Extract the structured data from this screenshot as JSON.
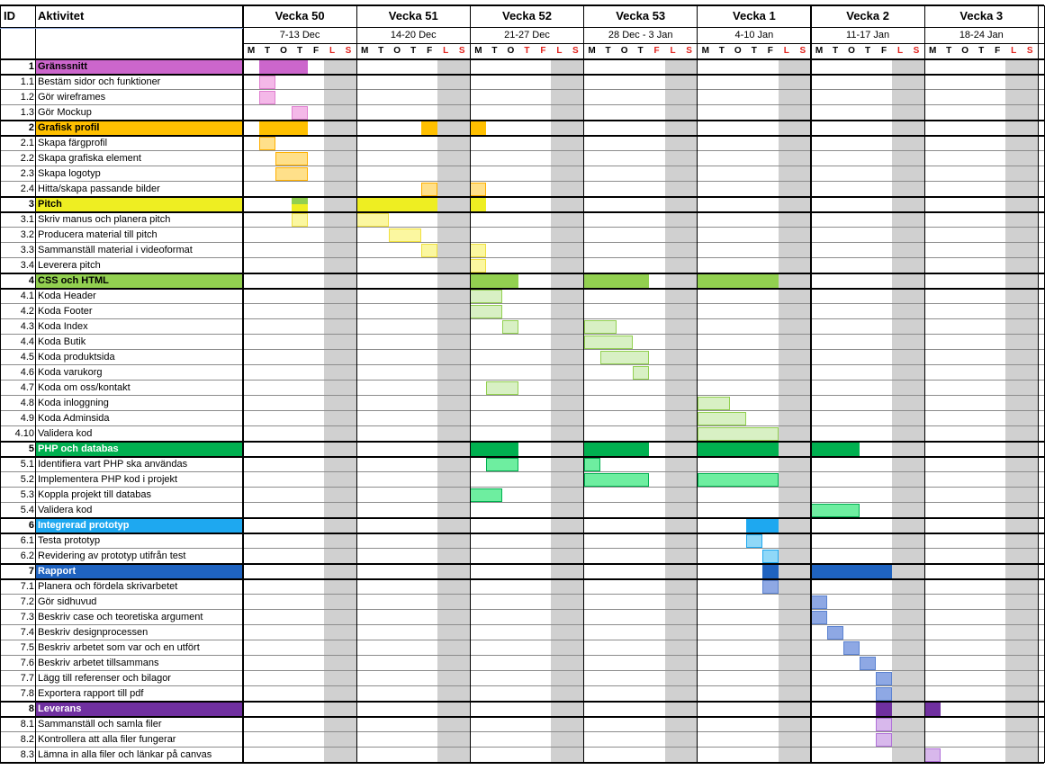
{
  "header": {
    "id_label": "ID",
    "activity_label": "Aktivitet"
  },
  "weeks": [
    {
      "name": "Vecka 50",
      "range": "7-13 Dec",
      "days": [
        "M",
        "T",
        "O",
        "T",
        "F",
        "L",
        "S"
      ]
    },
    {
      "name": "Vecka 51",
      "range": "14-20 Dec",
      "days": [
        "M",
        "T",
        "O",
        "T",
        "F",
        "L",
        "S"
      ]
    },
    {
      "name": "Vecka 52",
      "range": "21-27 Dec",
      "days": [
        "M",
        "T",
        "O",
        "T",
        "F",
        "L",
        "S"
      ]
    },
    {
      "name": "Vecka 53",
      "range": "28 Dec - 3 Jan",
      "days": [
        "M",
        "T",
        "O",
        "T",
        "F",
        "L",
        "S"
      ]
    },
    {
      "name": "Vecka 1",
      "range": "4-10 Jan",
      "days": [
        "M",
        "T",
        "O",
        "T",
        "F",
        "L",
        "S"
      ]
    },
    {
      "name": "Vecka 2",
      "range": "11-17 Jan",
      "days": [
        "M",
        "T",
        "O",
        "T",
        "F",
        "L",
        "S"
      ]
    },
    {
      "name": "Vecka 3",
      "range": "18-24 Jan",
      "days": [
        "M",
        "T",
        "O",
        "T",
        "F",
        "L",
        "S"
      ]
    }
  ],
  "colors": {
    "grid": "#000000",
    "weekend": "#d0d0d0",
    "red_day": "#e0201a",
    "header_sep": "#8ea9db"
  },
  "red_days": [
    {
      "week": 0,
      "day": 5
    },
    {
      "week": 0,
      "day": 6
    },
    {
      "week": 1,
      "day": 5
    },
    {
      "week": 1,
      "day": 6
    },
    {
      "week": 2,
      "day": 3
    },
    {
      "week": 2,
      "day": 4
    },
    {
      "week": 2,
      "day": 5
    },
    {
      "week": 2,
      "day": 6
    },
    {
      "week": 3,
      "day": 4
    },
    {
      "week": 3,
      "day": 5
    },
    {
      "week": 3,
      "day": 6
    },
    {
      "week": 4,
      "day": 5
    },
    {
      "week": 4,
      "day": 6
    },
    {
      "week": 5,
      "day": 5
    },
    {
      "week": 5,
      "day": 6
    },
    {
      "week": 6,
      "day": 5
    },
    {
      "week": 6,
      "day": 6
    }
  ],
  "groups": [
    {
      "id": "1",
      "name": "Gränssnitt",
      "color": "#cc66cc",
      "text_color": "#000000",
      "light": "#f4b8e8",
      "border": "#e07fd0",
      "bars": [
        [
          0,
          1,
          4
        ]
      ],
      "tasks": [
        {
          "id": "1.1",
          "name": "Bestäm sidor och funktioner",
          "bars": [
            [
              0,
              1,
              2
            ]
          ]
        },
        {
          "id": "1.2",
          "name": "Gör wireframes",
          "bars": [
            [
              0,
              1,
              2
            ]
          ]
        },
        {
          "id": "1.3",
          "name": "Gör Mockup",
          "bars": [
            [
              0,
              3,
              4
            ]
          ]
        }
      ]
    },
    {
      "id": "2",
      "name": "Grafisk profil",
      "color": "#ffc000",
      "text_color": "#000000",
      "light": "#ffe08a",
      "border": "#ffb000",
      "bars": [
        [
          0,
          1,
          4
        ],
        [
          1,
          4,
          5
        ],
        [
          2,
          0,
          1
        ]
      ],
      "tasks": [
        {
          "id": "2.1",
          "name": "Skapa färgprofil",
          "bars": [
            [
              0,
              1,
              2
            ]
          ]
        },
        {
          "id": "2.2",
          "name": "Skapa grafiska element",
          "bars": [
            [
              0,
              2,
              4
            ]
          ]
        },
        {
          "id": "2.3",
          "name": "Skapa logotyp",
          "bars": [
            [
              0,
              2,
              4
            ]
          ]
        },
        {
          "id": "2.4",
          "name": "Hitta/skapa passande bilder",
          "bars": [
            [
              1,
              4,
              5
            ],
            [
              2,
              0,
              1
            ]
          ]
        }
      ]
    },
    {
      "id": "3",
      "name": "Pitch",
      "color": "#eeee22",
      "text_color": "#000000",
      "light": "#fbf7a0",
      "border": "#f0e040",
      "bars": [
        [
          0,
          3,
          4
        ],
        [
          1,
          0,
          5
        ],
        [
          2,
          0,
          1
        ]
      ],
      "extra": [
        [
          0,
          3,
          4,
          "#92d050"
        ]
      ],
      "tasks": [
        {
          "id": "3.1",
          "name": "Skriv manus och planera pitch",
          "bars": [
            [
              0,
              3,
              4
            ],
            [
              1,
              0,
              2
            ]
          ]
        },
        {
          "id": "3.2",
          "name": "Producera material till pitch",
          "bars": [
            [
              1,
              2,
              4
            ]
          ]
        },
        {
          "id": "3.3",
          "name": "Sammanställ material i videoformat",
          "bars": [
            [
              1,
              4,
              5
            ],
            [
              2,
              0,
              1
            ]
          ]
        },
        {
          "id": "3.4",
          "name": "Leverera pitch",
          "bars": [
            [
              2,
              0,
              1
            ]
          ]
        }
      ]
    },
    {
      "id": "4",
      "name": "CSS och HTML",
      "color": "#92d050",
      "text_color": "#000000",
      "light": "#d8f0c4",
      "border": "#92d050",
      "bars": [
        [
          2,
          0,
          3
        ],
        [
          3,
          0,
          4
        ],
        [
          4,
          0,
          5
        ]
      ],
      "tasks": [
        {
          "id": "4.1",
          "name": "Koda Header",
          "bars": [
            [
              2,
              0,
              2
            ]
          ]
        },
        {
          "id": "4.2",
          "name": "Koda Footer",
          "bars": [
            [
              2,
              0,
              2
            ]
          ]
        },
        {
          "id": "4.3",
          "name": "Koda Index",
          "bars": [
            [
              2,
              2,
              3
            ],
            [
              3,
              0,
              2
            ]
          ]
        },
        {
          "id": "4.4",
          "name": "Koda Butik",
          "bars": [
            [
              3,
              0,
              3
            ]
          ]
        },
        {
          "id": "4.5",
          "name": "Koda produktsida",
          "bars": [
            [
              3,
              1,
              4
            ]
          ]
        },
        {
          "id": "4.6",
          "name": "Koda varukorg",
          "bars": [
            [
              3,
              3,
              4
            ]
          ]
        },
        {
          "id": "4.7",
          "name": "Koda om oss/kontakt",
          "bars": [
            [
              2,
              1,
              3
            ]
          ]
        },
        {
          "id": "4.8",
          "name": "Koda inloggning",
          "bars": [
            [
              4,
              0,
              2
            ]
          ]
        },
        {
          "id": "4.9",
          "name": "Koda Adminsida",
          "bars": [
            [
              4,
              0,
              3
            ]
          ]
        },
        {
          "id": "4.10",
          "name": "Validera kod",
          "bars": [
            [
              4,
              0,
              5
            ]
          ]
        }
      ]
    },
    {
      "id": "5",
      "name": "PHP och databas",
      "color": "#00b050",
      "text_color": "#ffffff",
      "light": "#6eeea0",
      "border": "#00b050",
      "bars": [
        [
          2,
          0,
          3
        ],
        [
          3,
          0,
          4
        ],
        [
          4,
          0,
          5
        ],
        [
          5,
          0,
          3
        ]
      ],
      "tasks": [
        {
          "id": "5.1",
          "name": "Identifiera vart PHP ska användas",
          "bars": [
            [
              2,
              1,
              3
            ],
            [
              3,
              0,
              1
            ]
          ]
        },
        {
          "id": "5.2",
          "name": "Implementera PHP kod i projekt",
          "bars": [
            [
              3,
              0,
              4
            ],
            [
              4,
              0,
              5
            ]
          ]
        },
        {
          "id": "5.3",
          "name": "Koppla projekt till databas",
          "bars": [
            [
              2,
              0,
              2
            ]
          ]
        },
        {
          "id": "5.4",
          "name": "Validera kod",
          "bars": [
            [
              5,
              0,
              3
            ]
          ]
        }
      ]
    },
    {
      "id": "6",
      "name": "Integrerad prototyp",
      "color": "#1ea8f0",
      "text_color": "#ffffff",
      "light": "#90d8f8",
      "border": "#1ea8f0",
      "bars": [
        [
          4,
          3,
          5
        ]
      ],
      "tasks": [
        {
          "id": "6.1",
          "name": "Testa prototyp",
          "bars": [
            [
              4,
              3,
              4
            ]
          ]
        },
        {
          "id": "6.2",
          "name": "Revidering av prototyp utifrån test",
          "bars": [
            [
              4,
              4,
              5
            ]
          ]
        }
      ]
    },
    {
      "id": "7",
      "name": "Rapport",
      "color": "#1f63c0",
      "text_color": "#ffffff",
      "light": "#8ea8e4",
      "border": "#5b82d0",
      "bars": [
        [
          4,
          4,
          5
        ],
        [
          5,
          0,
          5
        ]
      ],
      "tasks": [
        {
          "id": "7.1",
          "name": "Planera och fördela skrivarbetet",
          "bars": [
            [
              4,
              4,
              5
            ]
          ]
        },
        {
          "id": "7.2",
          "name": "Gör sidhuvud",
          "bars": [
            [
              5,
              0,
              1
            ]
          ]
        },
        {
          "id": "7.3",
          "name": "Beskriv case och teoretiska argument",
          "bars": [
            [
              5,
              0,
              1
            ]
          ]
        },
        {
          "id": "7.4",
          "name": "Beskriv designprocessen",
          "bars": [
            [
              5,
              1,
              2
            ]
          ]
        },
        {
          "id": "7.5",
          "name": "Beskriv arbetet som var och en utfört",
          "bars": [
            [
              5,
              2,
              3
            ]
          ]
        },
        {
          "id": "7.6",
          "name": "Beskriv arbetet tillsammans",
          "bars": [
            [
              5,
              3,
              4
            ]
          ]
        },
        {
          "id": "7.7",
          "name": "Lägg till referenser och bilagor",
          "bars": [
            [
              5,
              4,
              5
            ]
          ]
        },
        {
          "id": "7.8",
          "name": "Exportera rapport till pdf",
          "bars": [
            [
              5,
              4,
              5
            ]
          ]
        }
      ]
    },
    {
      "id": "8",
      "name": "Leverans",
      "color": "#7030a0",
      "text_color": "#ffffff",
      "light": "#d8b8ec",
      "border": "#b070d8",
      "bars": [
        [
          5,
          4,
          5
        ],
        [
          6,
          0,
          1
        ]
      ],
      "tasks": [
        {
          "id": "8.1",
          "name": "Sammanställ och samla filer",
          "bars": [
            [
              5,
              4,
              5
            ]
          ]
        },
        {
          "id": "8.2",
          "name": "Kontrollera att alla filer fungerar",
          "bars": [
            [
              5,
              4,
              5
            ]
          ]
        },
        {
          "id": "8.3",
          "name": "Lämna in alla filer och länkar på canvas",
          "bars": [
            [
              6,
              0,
              1
            ]
          ]
        }
      ]
    }
  ]
}
